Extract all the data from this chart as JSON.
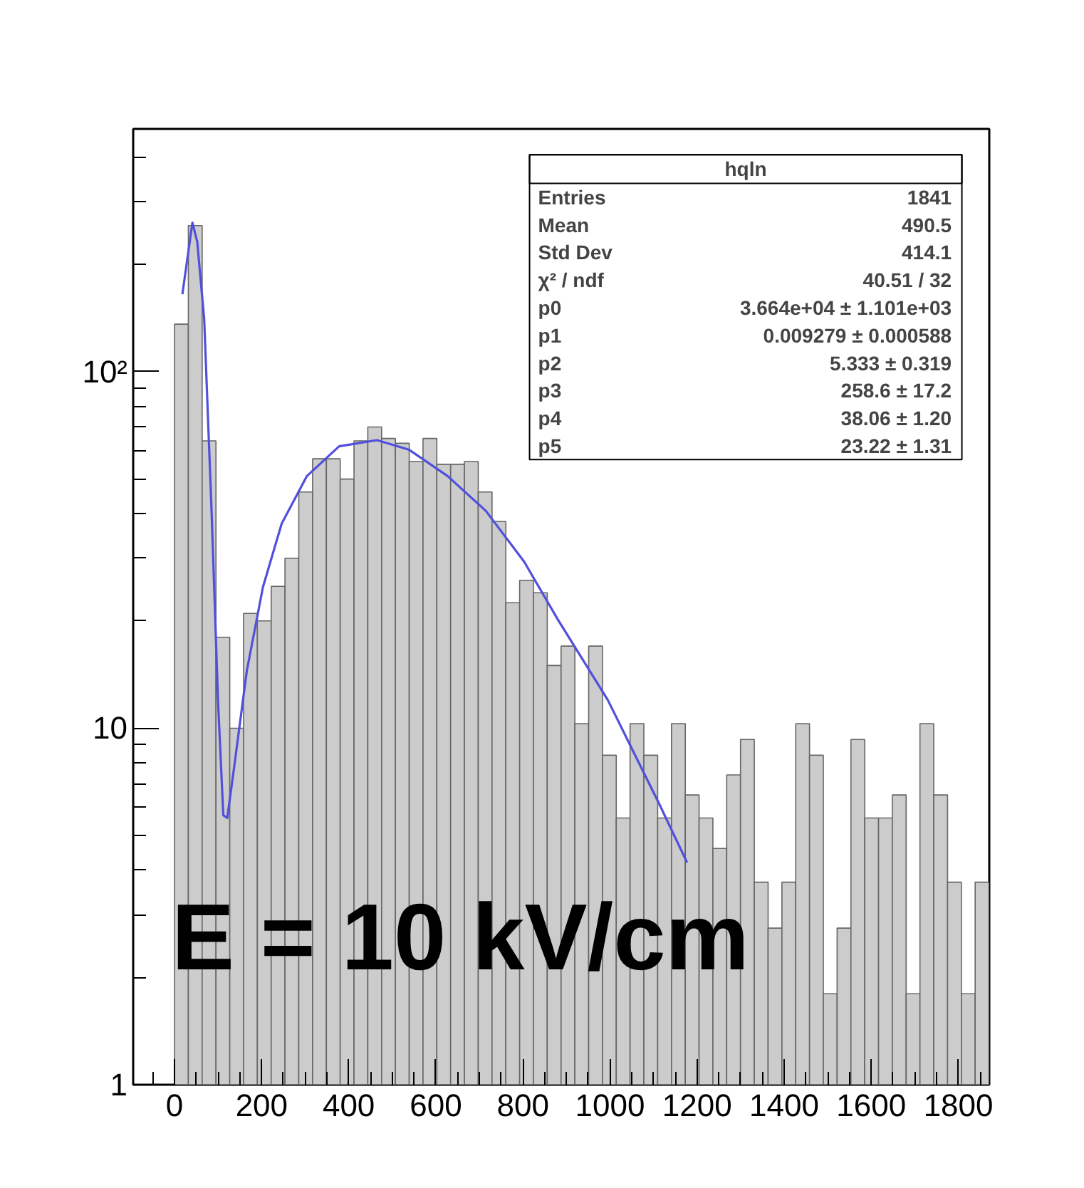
{
  "chart_data": {
    "type": "histogram",
    "bins": [
      0,
      31.7,
      63.4,
      95.1,
      126.8,
      158.5,
      190.2,
      221.9,
      253.6,
      285.3,
      317,
      348.7,
      380.4,
      412.1,
      443.8,
      475.5,
      507.2,
      538.9,
      570.6,
      602.3,
      634,
      665.7,
      697.4,
      729.1,
      760.8,
      792.5,
      824.2,
      855.9,
      887.6,
      919.3,
      951,
      982.7,
      1014.4,
      1046.1,
      1077.8,
      1109.5,
      1141.2,
      1172.9,
      1204.6,
      1236.3,
      1268,
      1299.7,
      1331.4,
      1363.1,
      1394.8,
      1426.5,
      1458.2,
      1489.9,
      1521.6,
      1553.3,
      1585,
      1616.7,
      1648.4,
      1680.1,
      1711.8,
      1743.5,
      1775.2,
      1806.9,
      1838.6,
      1870.3
    ],
    "values": [
      136,
      257,
      64,
      18,
      10,
      21,
      20,
      25,
      30,
      46,
      57,
      57,
      50,
      64,
      70,
      65,
      63,
      56,
      65,
      55,
      55,
      56,
      46,
      38,
      22.5,
      26,
      24,
      15,
      17,
      10.3,
      17,
      8.4,
      5.6,
      10.3,
      8.4,
      5.6,
      10.3,
      6.5,
      5.6,
      4.6,
      7.4,
      9.3,
      3.7,
      2.75,
      3.7,
      10.3,
      8.4,
      1.8,
      2.75,
      9.3,
      5.6,
      5.6,
      6.5,
      1.8,
      10.3,
      6.5,
      3.7,
      1.8,
      3.7
    ],
    "color": "#cccccc",
    "series": [
      {
        "type": "line",
        "color": "#5050dd",
        "x": [
          18,
          41,
          52,
          68,
          85,
          100,
          112,
          121,
          137,
          166,
          203,
          246,
          304,
          378,
          465,
          539,
          627,
          715,
          803,
          880,
          995,
          1114,
          1177
        ],
        "values": [
          165,
          262,
          232,
          141,
          40.7,
          11.8,
          5.7,
          5.6,
          7.8,
          14.5,
          24.9,
          37.5,
          51,
          61.8,
          64.3,
          60.4,
          51,
          40.7,
          29.3,
          20.2,
          12,
          6.1,
          4.2
        ]
      }
    ],
    "xlim": [
      -95,
      1871
    ],
    "ylim": [
      1,
      480
    ],
    "xticks": [
      0,
      200,
      400,
      600,
      800,
      1000,
      1200,
      1400,
      1600,
      1800
    ],
    "yticks": [
      1,
      10,
      {
        "value": 100,
        "label": "10²"
      }
    ],
    "log": "y",
    "grid": false,
    "annotations": [
      "E = 10 kV/cm",
      "hqln",
      "Entries  1841",
      "Mean  490.5",
      "Std Dev  414.1",
      "χ² / ndf  40.51 / 32",
      "p0  3.664e+04 ± 1.101e+03",
      "p1  0.009279 ± 0.000588",
      "p2  5.333 ± 0.319",
      "p3  258.6 ± 17.2",
      "p4  38.06 ± 1.20",
      "p5  23.22 ± 1.31"
    ]
  }
}
